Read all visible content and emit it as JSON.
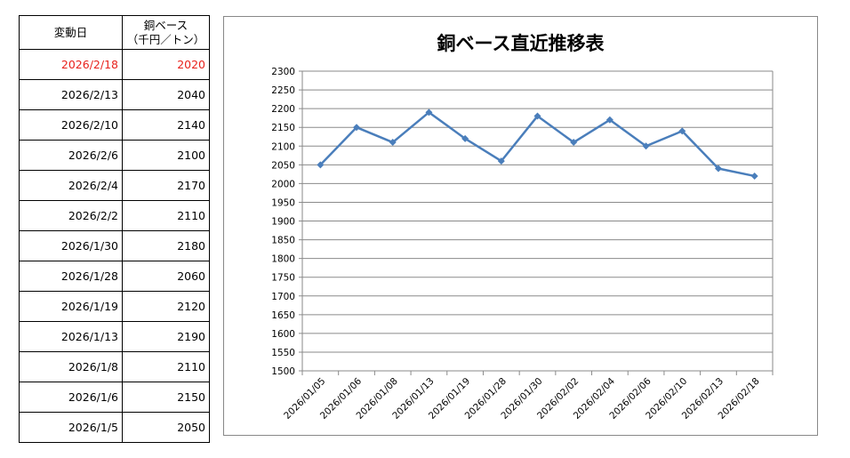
{
  "table": {
    "header": {
      "date_label": "変動日",
      "value_label": "銅ベース",
      "value_unit": "（千円／トン）"
    },
    "rows": [
      {
        "date": "2026/2/18",
        "value": "2020",
        "highlight": true
      },
      {
        "date": "2026/2/13",
        "value": "2040",
        "highlight": false
      },
      {
        "date": "2026/2/10",
        "value": "2140",
        "highlight": false
      },
      {
        "date": "2026/2/6",
        "value": "2100",
        "highlight": false
      },
      {
        "date": "2026/2/4",
        "value": "2170",
        "highlight": false
      },
      {
        "date": "2026/2/2",
        "value": "2110",
        "highlight": false
      },
      {
        "date": "2026/1/30",
        "value": "2180",
        "highlight": false
      },
      {
        "date": "2026/1/28",
        "value": "2060",
        "highlight": false
      },
      {
        "date": "2026/1/19",
        "value": "2120",
        "highlight": false
      },
      {
        "date": "2026/1/13",
        "value": "2190",
        "highlight": false
      },
      {
        "date": "2026/1/8",
        "value": "2110",
        "highlight": false
      },
      {
        "date": "2026/1/6",
        "value": "2150",
        "highlight": false
      },
      {
        "date": "2026/1/5",
        "value": "2050",
        "highlight": false
      }
    ],
    "highlight_color": "#e8221c"
  },
  "chart_data": {
    "type": "line",
    "title": "銅ベース直近推移表",
    "xlabel": "",
    "ylabel": "",
    "categories": [
      "2026/01/05",
      "2026/01/06",
      "2026/01/08",
      "2026/01/13",
      "2026/01/19",
      "2026/01/28",
      "2026/01/30",
      "2026/02/02",
      "2026/02/04",
      "2026/02/06",
      "2026/02/10",
      "2026/02/13",
      "2026/02/18"
    ],
    "series": [
      {
        "values": [
          2050,
          2150,
          2110,
          2190,
          2120,
          2060,
          2180,
          2110,
          2170,
          2100,
          2140,
          2040,
          2020
        ]
      }
    ],
    "ylim": [
      1500,
      2300
    ],
    "ytick_step": 50,
    "grid": true,
    "legend": "none",
    "line_color": "#4a7ebb",
    "marker": "diamond"
  }
}
